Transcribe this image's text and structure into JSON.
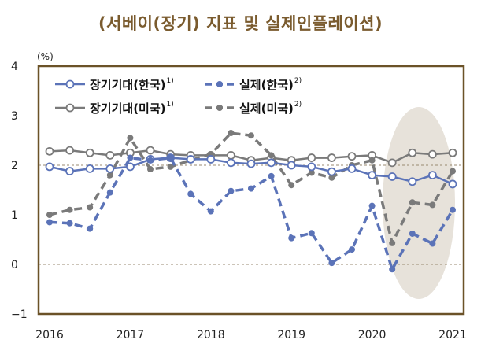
{
  "chart_data": {
    "type": "line",
    "title": "(서베이(장기) 지표 및 실제인플레이션)",
    "ylabel": "(%)",
    "xlabel": "",
    "ylim": [
      -1,
      4
    ],
    "yticks": [
      "−1",
      "0",
      "1",
      "2",
      "3",
      "4"
    ],
    "xlim": [
      2016,
      2021
    ],
    "xticks": [
      "2016",
      "2017",
      "2018",
      "2019",
      "2020",
      "2021"
    ],
    "grid": "dashed reference lines at y=0 and y=2",
    "legend_position": "top-left",
    "highlight": "shaded ellipse around 2020.25–2021",
    "series": [
      {
        "name": "장기기대(한국)",
        "superscript": "1)",
        "color": "#5b73b8",
        "style": "solid",
        "marker": "hollow",
        "x": [
          2016.0,
          2016.25,
          2016.5,
          2016.75,
          2017.0,
          2017.25,
          2017.5,
          2017.75,
          2018.0,
          2018.25,
          2018.5,
          2018.75,
          2019.0,
          2019.25,
          2019.5,
          2019.75,
          2020.0,
          2020.25,
          2020.5,
          2020.75,
          2021.0
        ],
        "values": [
          1.97,
          1.88,
          1.93,
          1.93,
          1.97,
          2.12,
          2.15,
          2.12,
          2.12,
          2.05,
          2.03,
          2.05,
          2.0,
          1.97,
          1.87,
          1.93,
          1.8,
          1.77,
          1.67,
          1.8,
          1.62
        ]
      },
      {
        "name": "실제(한국)",
        "superscript": "2)",
        "color": "#5b73b8",
        "style": "dashed",
        "marker": "filled",
        "x": [
          2016.0,
          2016.25,
          2016.5,
          2016.75,
          2017.0,
          2017.25,
          2017.5,
          2017.75,
          2018.0,
          2018.25,
          2018.5,
          2018.75,
          2019.0,
          2019.25,
          2019.5,
          2019.75,
          2020.0,
          2020.25,
          2020.5,
          2020.75,
          2021.0
        ],
        "values": [
          0.85,
          0.83,
          0.72,
          1.45,
          2.15,
          2.1,
          2.15,
          1.42,
          1.07,
          1.48,
          1.53,
          1.78,
          0.53,
          0.63,
          0.03,
          0.3,
          1.18,
          -0.1,
          0.62,
          0.42,
          1.1
        ]
      },
      {
        "name": "장기기대(미국)",
        "superscript": "1)",
        "color": "#7a7a7a",
        "style": "solid",
        "marker": "hollow",
        "x": [
          2016.0,
          2016.25,
          2016.5,
          2016.75,
          2017.0,
          2017.25,
          2017.5,
          2017.75,
          2018.0,
          2018.25,
          2018.5,
          2018.75,
          2019.0,
          2019.25,
          2019.5,
          2019.75,
          2020.0,
          2020.25,
          2020.5,
          2020.75,
          2021.0
        ],
        "values": [
          2.28,
          2.3,
          2.25,
          2.2,
          2.25,
          2.3,
          2.22,
          2.2,
          2.2,
          2.2,
          2.1,
          2.15,
          2.1,
          2.15,
          2.15,
          2.18,
          2.2,
          2.05,
          2.25,
          2.22,
          2.25
        ]
      },
      {
        "name": "실제(미국)",
        "superscript": "2)",
        "color": "#7a7a7a",
        "style": "dashed",
        "marker": "filled",
        "x": [
          2016.0,
          2016.25,
          2016.5,
          2016.75,
          2017.0,
          2017.25,
          2017.5,
          2017.75,
          2018.0,
          2018.25,
          2018.5,
          2018.75,
          2019.0,
          2019.25,
          2019.5,
          2019.75,
          2020.0,
          2020.25,
          2020.5,
          2020.75,
          2021.0
        ],
        "values": [
          1.0,
          1.1,
          1.15,
          1.8,
          2.55,
          1.92,
          1.97,
          2.1,
          2.22,
          2.65,
          2.6,
          2.2,
          1.6,
          1.85,
          1.75,
          2.0,
          2.1,
          0.43,
          1.25,
          1.2,
          1.88
        ]
      }
    ]
  }
}
